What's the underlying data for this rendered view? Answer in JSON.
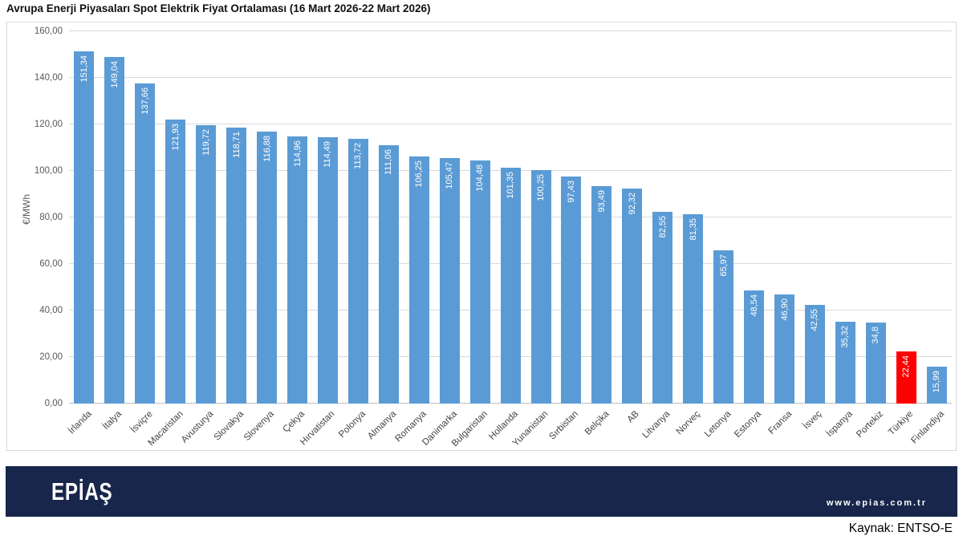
{
  "title": "Avrupa Enerji Piyasaları Spot Elektrik Fiyat Ortalaması (16 Mart 2026-22 Mart 2026)",
  "chart_data": {
    "type": "bar",
    "title": "Avrupa Enerji Piyasaları Spot Elektrik Fiyat Ortalaması (16 Mart 2026-22 Mart 2026)",
    "xlabel": "",
    "ylabel": "€/MWh",
    "ylim": [
      0,
      160
    ],
    "ytick_step": 20,
    "ytick_labels": [
      "0,00",
      "20,00",
      "40,00",
      "60,00",
      "80,00",
      "100,00",
      "120,00",
      "140,00",
      "160,00"
    ],
    "grid": true,
    "legend": "none",
    "categories": [
      "İrlanda",
      "İtalya",
      "İsviçre",
      "Macaristan",
      "Avusturya",
      "Slovakya",
      "Slovenya",
      "Çekya",
      "Hırvatistan",
      "Polonya",
      "Almanya",
      "Romanya",
      "Danimarka",
      "Bulgaristan",
      "Hollanda",
      "Yunanistan",
      "Sırbistan",
      "Belçika",
      "AB",
      "Litvanya",
      "Norveç",
      "Letonya",
      "Estonya",
      "Fransa",
      "İsveç",
      "İspanya",
      "Portekiz",
      "Türkiye",
      "Finlandiya"
    ],
    "values": [
      151.34,
      149.04,
      137.66,
      121.93,
      119.72,
      118.71,
      116.88,
      114.96,
      114.49,
      113.72,
      111.06,
      106.25,
      105.47,
      104.48,
      101.35,
      100.25,
      97.43,
      93.49,
      92.32,
      82.55,
      81.35,
      65.97,
      48.54,
      46.9,
      42.55,
      35.32,
      34.8,
      22.44,
      15.99
    ],
    "value_labels": [
      "151,34",
      "149,04",
      "137,66",
      "121,93",
      "119,72",
      "118,71",
      "116,88",
      "114,96",
      "114,49",
      "113,72",
      "111,06",
      "106,25",
      "105,47",
      "104,48",
      "101,35",
      "100,25",
      "97,43",
      "93,49",
      "92,32",
      "82,55",
      "81,35",
      "65,97",
      "48,54",
      "46,90",
      "42,55",
      "35,32",
      "34,8",
      "22,44",
      "15,99"
    ],
    "bar_color": "#5b9bd5",
    "value_text_color": "#ffffff",
    "highlight": {
      "category": "Türkiye",
      "index": 27,
      "color": "#ff0000"
    }
  },
  "footer": {
    "logo_text": "EPİAŞ",
    "website": "www.epias.com.tr",
    "bar_color": "#17264a"
  },
  "source_label": "Kaynak: ENTSO-E"
}
